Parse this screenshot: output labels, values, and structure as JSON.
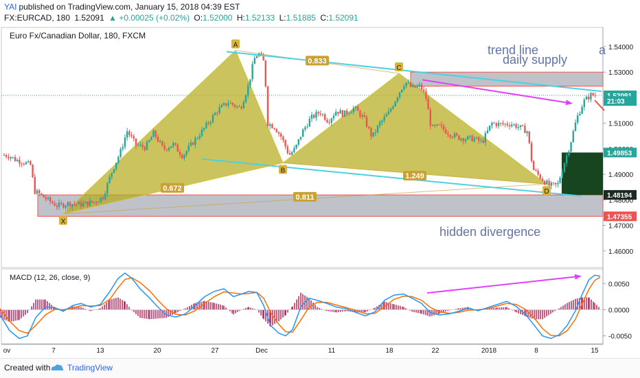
{
  "header": {
    "publisher": "YAI",
    "published_text": "published on TradingView.com, January 15, 2018 04:39 EST",
    "symbol": "FX:EURCAD, 180",
    "last": "1.52091",
    "change": "▲ +0.00025 (+0.02%)",
    "o_label": "O:",
    "o_value": "1.52000",
    "h_label": "H:",
    "h_value": "1.52133",
    "l_label": "L:",
    "l_value": "1.51885",
    "c_label": "C:",
    "c_value": "1.52091"
  },
  "footer": {
    "created_label": "Created with",
    "brand": "TradingView"
  },
  "colors": {
    "up": "#26a69a",
    "down": "#ef5350",
    "harmonic_fill": "#b5aa18",
    "trendline": "#4dd0e1",
    "arrow": "#e040fb",
    "supply_zone": "#8a8f9b",
    "macd_line": "#2196f3",
    "signal_line": "#ff6d00",
    "histogram": "#b2164e",
    "annotation_text": "#6274a6"
  },
  "chart_data": [
    {
      "type": "candlestick",
      "title": "Euro Fx/Canadian Dollar, 180, FXCM",
      "ylim": [
        1.4535,
        1.5475
      ],
      "y_ticks": [
        "1.54000",
        "1.53000",
        "1.52000",
        "1.51000",
        "1.50000",
        "1.49000",
        "1.48000",
        "1.47000",
        "1.46000"
      ],
      "x_ticks": [
        "ov",
        "7",
        "13",
        "20",
        "27",
        "Dec",
        "11",
        "18",
        "22",
        "2018",
        "8",
        "15"
      ],
      "price_tags": [
        {
          "value": "1.52091",
          "color": "#26a69a"
        },
        {
          "value": "21:03",
          "color": "#26a69a"
        },
        {
          "value": "1.49853",
          "color": "#26a69a"
        },
        {
          "value": "1.48194",
          "color": "#1b2a22"
        },
        {
          "value": "1.47355",
          "color": "#ef5350"
        }
      ],
      "price_path": [
        [
          0,
          1.4978
        ],
        [
          14,
          1.4972
        ],
        [
          22,
          1.4958
        ],
        [
          34,
          1.4948
        ],
        [
          45,
          1.4935
        ],
        [
          50,
          1.4835
        ],
        [
          60,
          1.4818
        ],
        [
          72,
          1.4795
        ],
        [
          84,
          1.4776
        ],
        [
          100,
          1.4786
        ],
        [
          118,
          1.4782
        ],
        [
          138,
          1.4792
        ],
        [
          150,
          1.4812
        ],
        [
          164,
          1.4918
        ],
        [
          176,
          1.4992
        ],
        [
          185,
          1.507
        ],
        [
          198,
          1.5015
        ],
        [
          212,
          1.5005
        ],
        [
          224,
          1.5062
        ],
        [
          238,
          1.4998
        ],
        [
          252,
          1.5018
        ],
        [
          266,
          1.4972
        ],
        [
          282,
          1.5028
        ],
        [
          298,
          1.5082
        ],
        [
          316,
          1.5148
        ],
        [
          332,
          1.5182
        ],
        [
          350,
          1.5158
        ],
        [
          362,
          1.525
        ],
        [
          370,
          1.535
        ],
        [
          376,
          1.5375
        ],
        [
          385,
          1.5335
        ],
        [
          390,
          1.51
        ],
        [
          400,
          1.5085
        ],
        [
          410,
          1.5045
        ],
        [
          421,
          1.4975
        ],
        [
          430,
          1.5
        ],
        [
          440,
          1.5065
        ],
        [
          452,
          1.5118
        ],
        [
          466,
          1.5145
        ],
        [
          478,
          1.5108
        ],
        [
          490,
          1.515
        ],
        [
          500,
          1.5135
        ],
        [
          516,
          1.516
        ],
        [
          530,
          1.5118
        ],
        [
          542,
          1.5045
        ],
        [
          552,
          1.5095
        ],
        [
          566,
          1.514
        ],
        [
          580,
          1.5215
        ],
        [
          590,
          1.5262
        ],
        [
          600,
          1.5238
        ],
        [
          612,
          1.5245
        ],
        [
          620,
          1.5205
        ],
        [
          628,
          1.508
        ],
        [
          640,
          1.5088
        ],
        [
          654,
          1.506
        ],
        [
          666,
          1.5045
        ],
        [
          678,
          1.504
        ],
        [
          690,
          1.504
        ],
        [
          702,
          1.5025
        ],
        [
          716,
          1.51
        ],
        [
          730,
          1.5095
        ],
        [
          744,
          1.5098
        ],
        [
          758,
          1.5082
        ],
        [
          768,
          1.5068
        ],
        [
          776,
          1.492
        ],
        [
          790,
          1.488
        ],
        [
          800,
          1.4855
        ],
        [
          812,
          1.4858
        ],
        [
          820,
          1.493
        ],
        [
          830,
          1.5015
        ],
        [
          840,
          1.512
        ],
        [
          850,
          1.5185
        ],
        [
          860,
          1.521
        ],
        [
          870,
          1.5209
        ]
      ],
      "harmonic_pattern": {
        "points": [
          {
            "label": "X",
            "x": 92,
            "price": 1.4745
          },
          {
            "label": "A",
            "x": 343,
            "price": 1.5385
          },
          {
            "label": "B",
            "x": 412,
            "price": 1.4945
          },
          {
            "label": "C",
            "x": 581,
            "price": 1.5295
          },
          {
            "label": "D",
            "x": 796,
            "price": 1.4862
          }
        ],
        "ratios": [
          {
            "label": "0.833",
            "x": 462,
            "price": 1.5345
          },
          {
            "label": "0.672",
            "x": 251,
            "price": 1.4847
          },
          {
            "label": "1.249",
            "x": 604,
            "price": 1.4895
          },
          {
            "label": "0.811",
            "x": 444,
            "price": 1.4812
          }
        ]
      },
      "annotations": [
        "trend line",
        "a",
        "daily supply",
        "hidden divergence"
      ]
    },
    {
      "type": "line",
      "title": "MACD (12, 26, close, 9)",
      "ylim": [
        -0.0065,
        0.0078
      ],
      "y_ticks": [
        "0.0050",
        "0.0000",
        "-0.0050"
      ],
      "series": [
        {
          "name": "MACD",
          "points": [
            [
              0,
              -0.001
            ],
            [
              14,
              -0.004
            ],
            [
              28,
              -0.0055
            ],
            [
              40,
              -0.005
            ],
            [
              52,
              -0.0015
            ],
            [
              66,
              0.0005
            ],
            [
              80,
              0.0004
            ],
            [
              92,
              -0.0003
            ],
            [
              106,
              0.0008
            ],
            [
              118,
              0.0012
            ],
            [
              132,
              0.0005
            ],
            [
              146,
              0.001
            ],
            [
              160,
              0.0035
            ],
            [
              172,
              0.006
            ],
            [
              182,
              0.007
            ],
            [
              192,
              0.006
            ],
            [
              204,
              0.004
            ],
            [
              218,
              0.0022
            ],
            [
              230,
              0.0005
            ],
            [
              242,
              -0.001
            ],
            [
              256,
              -0.0014
            ],
            [
              270,
              -0.0008
            ],
            [
              284,
              0.0008
            ],
            [
              298,
              0.0025
            ],
            [
              312,
              0.0035
            ],
            [
              326,
              0.004
            ],
            [
              340,
              0.0025
            ],
            [
              352,
              0.003
            ],
            [
              362,
              0.0035
            ],
            [
              374,
              0.0033
            ],
            [
              384,
              0.0008
            ],
            [
              394,
              -0.003
            ],
            [
              406,
              -0.0045
            ],
            [
              416,
              -0.005
            ],
            [
              426,
              -0.0038
            ],
            [
              438,
              0.0005
            ],
            [
              450,
              0.0022
            ],
            [
              462,
              0.0018
            ],
            [
              476,
              0.0012
            ],
            [
              490,
              0.0005
            ],
            [
              504,
              0.0002
            ],
            [
              518,
              -0.0005
            ],
            [
              532,
              -0.0012
            ],
            [
              546,
              -0.0004
            ],
            [
              560,
              0.0018
            ],
            [
              574,
              0.0028
            ],
            [
              588,
              0.003
            ],
            [
              600,
              0.0022
            ],
            [
              614,
              0.0012
            ],
            [
              626,
              -0.0005
            ],
            [
              640,
              -0.001
            ],
            [
              654,
              -0.0008
            ],
            [
              668,
              -0.0003
            ],
            [
              682,
              0.0003
            ],
            [
              696,
              -0.0002
            ],
            [
              710,
              0.0004
            ],
            [
              724,
              0.001
            ],
            [
              738,
              0.0016
            ],
            [
              752,
              0.0006
            ],
            [
              766,
              -0.001
            ],
            [
              778,
              -0.003
            ],
            [
              790,
              -0.005
            ],
            [
              802,
              -0.0055
            ],
            [
              814,
              -0.0048
            ],
            [
              826,
              -0.003
            ],
            [
              838,
              -0.0002
            ],
            [
              848,
              0.003
            ],
            [
              858,
              0.0058
            ],
            [
              866,
              0.0066
            ],
            [
              874,
              0.0064
            ]
          ]
        },
        {
          "name": "Signal",
          "points": [
            [
              0,
              0.0002
            ],
            [
              14,
              -0.0022
            ],
            [
              28,
              -0.004
            ],
            [
              40,
              -0.0045
            ],
            [
              52,
              -0.003
            ],
            [
              66,
              -0.001
            ],
            [
              80,
              0.0001
            ],
            [
              92,
              0.0
            ],
            [
              106,
              0.0003
            ],
            [
              118,
              0.0008
            ],
            [
              132,
              0.0007
            ],
            [
              146,
              0.0008
            ],
            [
              160,
              0.002
            ],
            [
              172,
              0.0042
            ],
            [
              182,
              0.0058
            ],
            [
              192,
              0.0061
            ],
            [
              204,
              0.0052
            ],
            [
              218,
              0.0036
            ],
            [
              230,
              0.0018
            ],
            [
              242,
              0.0002
            ],
            [
              256,
              -0.0009
            ],
            [
              270,
              -0.001
            ],
            [
              284,
              -0.0002
            ],
            [
              298,
              0.0012
            ],
            [
              312,
              0.0025
            ],
            [
              326,
              0.0034
            ],
            [
              340,
              0.0032
            ],
            [
              352,
              0.003
            ],
            [
              362,
              0.0031
            ],
            [
              374,
              0.0033
            ],
            [
              384,
              0.0022
            ],
            [
              394,
              -0.0005
            ],
            [
              406,
              -0.0028
            ],
            [
              416,
              -0.0042
            ],
            [
              426,
              -0.0043
            ],
            [
              438,
              -0.002
            ],
            [
              450,
              0.0005
            ],
            [
              462,
              0.0014
            ],
            [
              476,
              0.0014
            ],
            [
              490,
              0.0009
            ],
            [
              504,
              0.0004
            ],
            [
              518,
              -0.0001
            ],
            [
              532,
              -0.0008
            ],
            [
              546,
              -0.0007
            ],
            [
              560,
              0.0006
            ],
            [
              574,
              0.002
            ],
            [
              588,
              0.0026
            ],
            [
              600,
              0.0025
            ],
            [
              614,
              0.0018
            ],
            [
              626,
              0.0005
            ],
            [
              640,
              -0.0004
            ],
            [
              654,
              -0.0007
            ],
            [
              668,
              -0.0005
            ],
            [
              682,
              -0.0001
            ],
            [
              696,
              0.0
            ],
            [
              710,
              0.0002
            ],
            [
              724,
              0.0007
            ],
            [
              738,
              0.0012
            ],
            [
              752,
              0.001
            ],
            [
              766,
              0.0
            ],
            [
              778,
              -0.0016
            ],
            [
              790,
              -0.0036
            ],
            [
              802,
              -0.0049
            ],
            [
              814,
              -0.005
            ],
            [
              826,
              -0.004
            ],
            [
              838,
              -0.0018
            ],
            [
              848,
              0.0012
            ],
            [
              858,
              0.004
            ],
            [
              866,
              0.0056
            ],
            [
              874,
              0.0062
            ]
          ]
        }
      ]
    }
  ]
}
